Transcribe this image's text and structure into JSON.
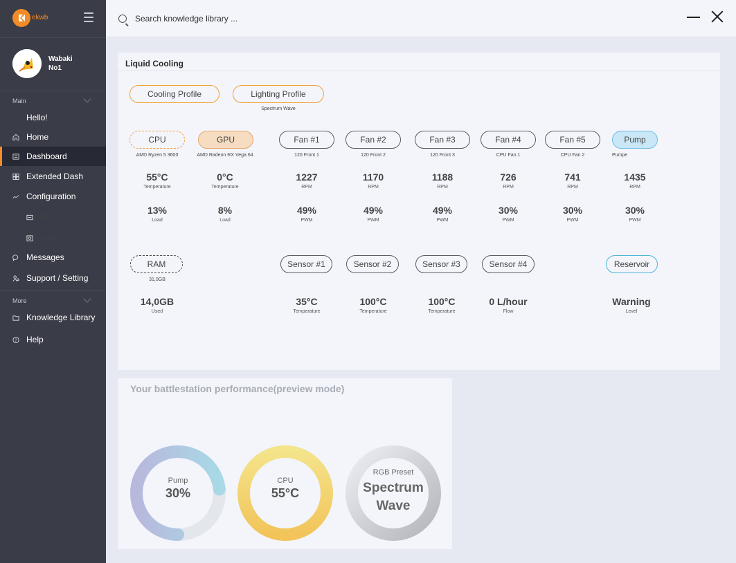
{
  "sidebar": {
    "logo_text": "ekwb",
    "logo_mark": "EK",
    "username_line1": "Wabaki",
    "username_line2": "No1",
    "section_main": "Main",
    "section_more": "More",
    "items": [
      {
        "label": "Hello!",
        "icon": "none"
      },
      {
        "label": "Home",
        "icon": "home-icon"
      },
      {
        "label": "Dashboard",
        "icon": "dashboard-icon",
        "active": true
      },
      {
        "label": "Extended Dash",
        "icon": "grid-icon"
      },
      {
        "label": "Configuration",
        "icon": "chart-line-icon"
      },
      {
        "label": "RGB",
        "icon": "rgb-icon"
      },
      {
        "label": "Cooling",
        "icon": "cooling-icon"
      },
      {
        "label": "Messages",
        "icon": "chat-icon"
      },
      {
        "label": "Support / Setting",
        "icon": "support-icon"
      },
      {
        "label": "Knowledge Library",
        "icon": "folder-icon"
      },
      {
        "label": "Help",
        "icon": "help-icon"
      }
    ]
  },
  "topbar": {
    "search_placeholder": "Search knowledge library ..."
  },
  "cooling": {
    "title": "Liquid Cooling",
    "cooling_profile": "Cooling Profile",
    "lighting_profile": "Lighting Profile",
    "lighting_profile_sub": "Spectrum Wave",
    "components": [
      {
        "name": "CPU",
        "sub": "AMD Ryzen 5 3600",
        "v1": "55°C",
        "l1": "Temperature",
        "v2": "13%",
        "l2": "Load"
      },
      {
        "name": "GPU",
        "sub": "AMD Radeon RX Vega 64",
        "v1": "0°C",
        "l1": "Temperature",
        "v2": "8%",
        "l2": "Load"
      },
      {
        "name": "Fan #1",
        "sub": "120 Front 1",
        "v1": "1227",
        "l1": "RPM",
        "v2": "49%",
        "l2": "PWM"
      },
      {
        "name": "Fan #2",
        "sub": "120 Front 2",
        "v1": "1170",
        "l1": "RPM",
        "v2": "49%",
        "l2": "PWM"
      },
      {
        "name": "Fan #3",
        "sub": "120 Front 3",
        "v1": "1188",
        "l1": "RPM",
        "v2": "49%",
        "l2": "PWM"
      },
      {
        "name": "Fan #4",
        "sub": "CPU Fan 1",
        "v1": "726",
        "l1": "RPM",
        "v2": "30%",
        "l2": "PWM"
      },
      {
        "name": "Fan #5",
        "sub": "CPU Fan 2",
        "v1": "741",
        "l1": "RPM",
        "v2": "30%",
        "l2": "PWM"
      },
      {
        "name": "Pump",
        "sub": "Pumpe",
        "v1": "1435",
        "l1": "RPM",
        "v2": "30%",
        "l2": "PWM"
      }
    ],
    "ram": {
      "name": "RAM",
      "sub": "31,0GB",
      "v1": "14,0GB",
      "l1": "Used"
    },
    "sensors": [
      {
        "name": "Sensor #1",
        "v1": "35°C",
        "l1": "Temperature"
      },
      {
        "name": "Sensor #2",
        "v1": "100°C",
        "l1": "Temperature"
      },
      {
        "name": "Sensor #3",
        "v1": "100°C",
        "l1": "Temperature"
      },
      {
        "name": "Sensor #4",
        "v1": "0 L/hour",
        "l1": "Flow"
      }
    ],
    "reservoir": {
      "name": "Reservoir",
      "v1": "Warning",
      "l1": "Level"
    }
  },
  "performance": {
    "title": "Your battlestation performance(preview mode)",
    "gauges": [
      {
        "label": "Pump",
        "value": "30%",
        "fill": 0.3,
        "color": "teal"
      },
      {
        "label": "CPU",
        "value": "55°C",
        "fill": 0.55,
        "color": "yellow"
      },
      {
        "label": "RGB Preset",
        "value_line1": "Spectrum",
        "value_line2": "Wave",
        "color": "gray"
      }
    ]
  },
  "colors": {
    "accent": "#f28c28",
    "sidebar_bg": "#3a3c47",
    "panel_bg": "#f3f5fb",
    "page_bg": "#e6e9f1"
  }
}
